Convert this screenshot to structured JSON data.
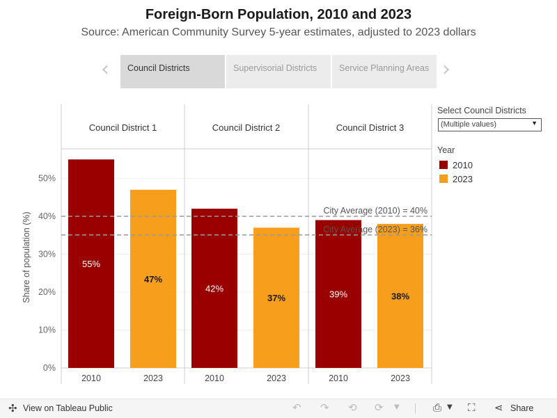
{
  "title": "Foreign-Born Population, 2010 and 2023",
  "subtitle": "Source: American Community Survey 5-year estimates, adjusted to 2023 dollars",
  "tabs": [
    {
      "label": "Council Districts",
      "active": true
    },
    {
      "label": "Supervisorial Districts",
      "active": false
    },
    {
      "label": "Service Planning Areas",
      "active": false
    }
  ],
  "nav": {
    "prev": "‹",
    "next": "›"
  },
  "filter": {
    "title": "Select Council Districts",
    "value": "(Multiple values)",
    "caret": "▼"
  },
  "legend": {
    "title": "Year",
    "items": [
      {
        "label": "2010",
        "color": "#990000"
      },
      {
        "label": "2023",
        "color": "#f89e1d"
      }
    ]
  },
  "chart_data": {
    "type": "bar",
    "title": "Foreign-Born Population, 2010 and 2023",
    "ylabel": "Share of population (%)",
    "xlabel": "",
    "ylim": [
      0,
      58
    ],
    "yticks": [
      0,
      10,
      20,
      30,
      40,
      50
    ],
    "ytick_labels": [
      "0%",
      "10%",
      "20%",
      "30%",
      "40%",
      "50%"
    ],
    "panels": [
      {
        "name": "Council District 1",
        "categories": [
          "2010",
          "2023"
        ],
        "values": [
          55,
          47
        ],
        "labels": [
          "55%",
          "47%"
        ]
      },
      {
        "name": "Council District 2",
        "categories": [
          "2010",
          "2023"
        ],
        "values": [
          42,
          37
        ],
        "labels": [
          "42%",
          "37%"
        ]
      },
      {
        "name": "Council District 3",
        "categories": [
          "2010",
          "2023"
        ],
        "values": [
          39,
          38
        ],
        "labels": [
          "39%",
          "38%"
        ]
      }
    ],
    "series_colors": {
      "2010": "#990000",
      "2023": "#f89e1d"
    },
    "reference_lines": [
      {
        "label": "City Average (2010) = 40%",
        "value": 40
      },
      {
        "label": "City Average (2023) = 36%",
        "value": 36
      }
    ]
  },
  "footer": {
    "tableau_label": "View on Tableau Public",
    "share_label": "Share",
    "icons": [
      "tableau-logo-icon",
      "undo-icon",
      "redo-icon",
      "revert-icon",
      "refresh-icon",
      "pause-icon",
      "download-icon",
      "fullscreen-icon",
      "share-icon"
    ]
  }
}
